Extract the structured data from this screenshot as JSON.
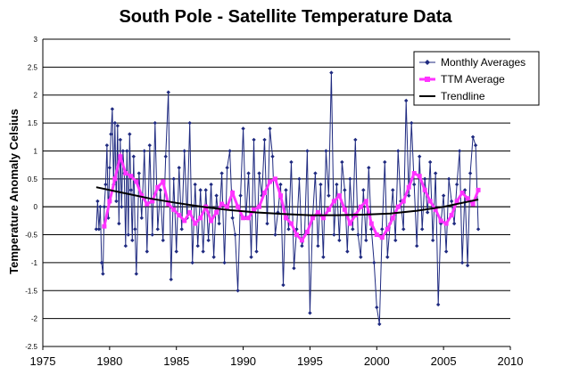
{
  "chart_data": {
    "type": "line",
    "title": "South Pole - Satellite Temperature Data",
    "xlabel": "",
    "ylabel": "Temperature Anomaly Celsius",
    "xlim": [
      1975,
      2010
    ],
    "ylim": [
      -2.5,
      3
    ],
    "xticks": [
      "1975",
      "1980",
      "1985",
      "1990",
      "1995",
      "2000",
      "2005",
      "2010"
    ],
    "yticks": [
      "3",
      "2.5",
      "2",
      "1.5",
      "1",
      "0.5",
      "0",
      "-0.5",
      "-1",
      "-1.5",
      "-2",
      "-2.5"
    ],
    "grid": "horizontal",
    "legend_position": "top-right",
    "series": [
      {
        "name": "Monthly Averages",
        "color": "#1f2a80",
        "marker": "diamond",
        "x": [
          1979.0,
          1979.1,
          1979.2,
          1979.3,
          1979.4,
          1979.5,
          1979.6,
          1979.7,
          1979.8,
          1979.9,
          1980.0,
          1980.1,
          1980.2,
          1980.3,
          1980.4,
          1980.5,
          1980.6,
          1980.7,
          1980.8,
          1980.9,
          1981.0,
          1981.1,
          1981.2,
          1981.3,
          1981.4,
          1981.5,
          1981.6,
          1981.7,
          1981.8,
          1981.9,
          1982.0,
          1982.2,
          1982.4,
          1982.6,
          1982.8,
          1983.0,
          1983.2,
          1983.4,
          1983.6,
          1983.8,
          1984.0,
          1984.2,
          1984.4,
          1984.6,
          1984.8,
          1985.0,
          1985.2,
          1985.4,
          1985.6,
          1985.8,
          1986.0,
          1986.2,
          1986.4,
          1986.6,
          1986.8,
          1987.0,
          1987.2,
          1987.4,
          1987.6,
          1987.8,
          1988.0,
          1988.2,
          1988.4,
          1988.6,
          1988.8,
          1989.0,
          1989.2,
          1989.4,
          1989.6,
          1989.8,
          1990.0,
          1990.2,
          1990.4,
          1990.6,
          1990.8,
          1991.0,
          1991.2,
          1991.4,
          1991.6,
          1991.8,
          1992.0,
          1992.2,
          1992.4,
          1992.6,
          1992.8,
          1993.0,
          1993.2,
          1993.4,
          1993.6,
          1993.8,
          1994.0,
          1994.2,
          1994.4,
          1994.6,
          1994.8,
          1995.0,
          1995.2,
          1995.4,
          1995.6,
          1995.8,
          1996.0,
          1996.2,
          1996.4,
          1996.6,
          1996.8,
          1997.0,
          1997.2,
          1997.4,
          1997.6,
          1997.8,
          1998.0,
          1998.2,
          1998.4,
          1998.6,
          1998.8,
          1999.0,
          1999.2,
          1999.4,
          1999.6,
          1999.8,
          2000.0,
          2000.2,
          2000.4,
          2000.6,
          2000.8,
          2001.0,
          2001.2,
          2001.4,
          2001.6,
          2001.8,
          2002.0,
          2002.2,
          2002.4,
          2002.6,
          2002.8,
          2003.0,
          2003.2,
          2003.4,
          2003.6,
          2003.8,
          2004.0,
          2004.2,
          2004.4,
          2004.6,
          2004.8,
          2005.0,
          2005.2,
          2005.4,
          2005.6,
          2005.8,
          2006.0,
          2006.2,
          2006.4,
          2006.6,
          2006.8,
          2007.0,
          2007.2,
          2007.4,
          2007.6
        ],
        "y": [
          -0.4,
          0.1,
          -0.4,
          0.0,
          -1.0,
          -1.2,
          0.0,
          0.4,
          1.1,
          -0.2,
          0.7,
          1.3,
          1.75,
          0.4,
          1.5,
          0.1,
          1.45,
          -0.3,
          1.2,
          0.0,
          1.0,
          0.6,
          -0.7,
          1.0,
          -0.5,
          1.3,
          0.3,
          -0.6,
          0.9,
          -0.4,
          -1.2,
          0.6,
          -0.2,
          1.0,
          -0.8,
          1.1,
          -0.5,
          1.5,
          -0.4,
          0.3,
          -0.6,
          0.9,
          2.05,
          -1.3,
          0.5,
          -0.8,
          0.7,
          -0.4,
          1.0,
          -0.2,
          1.5,
          -1.0,
          0.4,
          -0.7,
          0.3,
          -0.8,
          0.3,
          -0.6,
          0.4,
          -0.9,
          0.2,
          -0.3,
          0.6,
          -1.0,
          0.7,
          1.0,
          -0.2,
          -0.5,
          -1.5,
          0.2,
          1.4,
          -0.2,
          0.6,
          -0.9,
          1.2,
          -0.8,
          0.6,
          0.2,
          1.2,
          -0.3,
          1.4,
          0.9,
          -0.5,
          -0.1,
          0.4,
          -1.4,
          0.3,
          -0.4,
          0.8,
          -1.1,
          -0.4,
          0.5,
          -0.7,
          -0.5,
          1.0,
          -1.9,
          -0.2,
          0.6,
          -0.7,
          0.4,
          -0.9,
          1.0,
          0.2,
          2.4,
          -0.5,
          0.4,
          -0.6,
          0.8,
          0.3,
          -0.8,
          0.5,
          -0.4,
          1.2,
          -0.5,
          -0.9,
          0.3,
          -0.6,
          0.7,
          -0.4,
          -1.0,
          -1.8,
          -2.1,
          -0.4,
          0.8,
          -0.9,
          -0.3,
          0.3,
          -0.6,
          1.0,
          0.1,
          -0.4,
          1.9,
          0.2,
          1.5,
          0.4,
          -0.7,
          0.9,
          -0.4,
          0.5,
          -0.1,
          0.8,
          -0.6,
          0.6,
          -1.75,
          -0.3,
          0.2,
          -0.8,
          0.5,
          0.1,
          -0.3,
          0.4,
          1.0,
          -1.0,
          0.3,
          -1.05,
          0.6,
          1.25,
          1.1,
          -0.4
        ]
      },
      {
        "name": "TTM Average",
        "color": "#ff33ff",
        "marker": "square",
        "x": [
          1979.6,
          1980.0,
          1980.4,
          1980.8,
          1981.2,
          1981.6,
          1982.0,
          1982.4,
          1982.8,
          1983.2,
          1983.6,
          1984.0,
          1984.4,
          1984.8,
          1985.2,
          1985.6,
          1986.0,
          1986.4,
          1986.8,
          1987.2,
          1987.6,
          1988.0,
          1988.4,
          1988.8,
          1989.2,
          1989.6,
          1990.0,
          1990.4,
          1990.8,
          1991.2,
          1991.6,
          1992.0,
          1992.4,
          1992.8,
          1993.2,
          1993.6,
          1994.0,
          1994.4,
          1994.8,
          1995.2,
          1995.6,
          1996.0,
          1996.4,
          1996.8,
          1997.2,
          1997.6,
          1998.0,
          1998.4,
          1998.8,
          1999.2,
          1999.6,
          2000.0,
          2000.4,
          2000.8,
          2001.2,
          2001.6,
          2002.0,
          2002.4,
          2002.8,
          2003.2,
          2003.6,
          2004.0,
          2004.4,
          2004.8,
          2005.2,
          2005.6,
          2006.0,
          2006.4,
          2006.8,
          2007.2,
          2007.6
        ],
        "y": [
          -0.35,
          0.1,
          0.5,
          0.9,
          0.6,
          0.55,
          0.45,
          0.2,
          0.05,
          0.1,
          0.35,
          0.45,
          0.05,
          -0.05,
          -0.15,
          -0.25,
          -0.1,
          -0.3,
          -0.2,
          0.0,
          -0.25,
          -0.1,
          0.05,
          0.0,
          0.25,
          0.0,
          -0.2,
          -0.2,
          -0.05,
          0.0,
          0.25,
          0.45,
          0.5,
          0.2,
          -0.2,
          -0.3,
          -0.5,
          -0.6,
          -0.45,
          -0.2,
          -0.1,
          -0.2,
          -0.05,
          0.1,
          0.2,
          -0.05,
          -0.3,
          -0.15,
          0.0,
          0.1,
          -0.3,
          -0.5,
          -0.55,
          -0.4,
          -0.2,
          0.0,
          0.1,
          0.35,
          0.6,
          0.55,
          0.3,
          0.1,
          -0.05,
          -0.25,
          -0.3,
          -0.15,
          0.1,
          0.25,
          0.15,
          0.05,
          0.3
        ]
      },
      {
        "name": "Trendline",
        "color": "#000000",
        "marker": "none",
        "x": [
          1979,
          1981,
          1983,
          1985,
          1987,
          1989,
          1991,
          1993,
          1995,
          1997,
          1999,
          2001,
          2003,
          2005,
          2007,
          2007.6
        ],
        "y": [
          0.35,
          0.25,
          0.15,
          0.07,
          0.0,
          -0.06,
          -0.1,
          -0.13,
          -0.15,
          -0.15,
          -0.14,
          -0.12,
          -0.07,
          0.0,
          0.1,
          0.13
        ]
      }
    ]
  }
}
